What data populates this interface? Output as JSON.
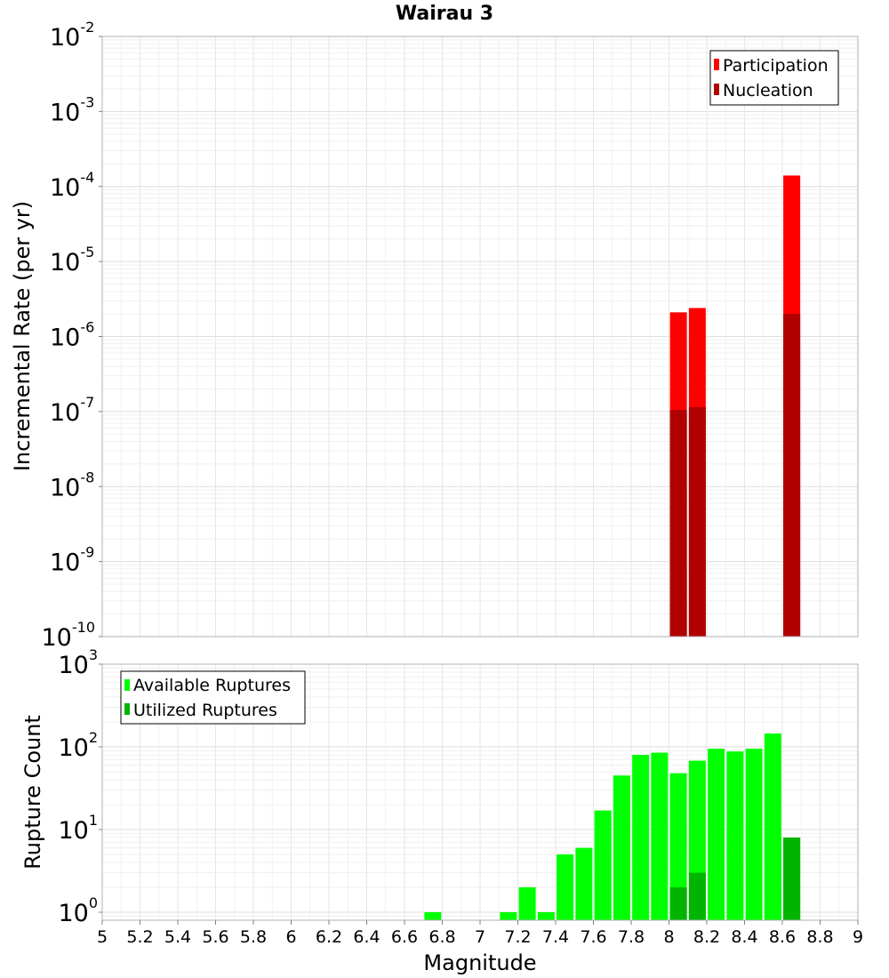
{
  "chart_data": [
    {
      "type": "bar",
      "title": "Wairau 3",
      "xlabel": "",
      "ylabel": "Incremental Rate (per yr)",
      "yscale": "log",
      "ylim": [
        1e-10,
        0.01
      ],
      "xlim": [
        5,
        9
      ],
      "y_tick_labels": [
        {
          "base": "10",
          "exp": "-10",
          "value": 1e-10
        },
        {
          "base": "10",
          "exp": "-9",
          "value": 1e-09
        },
        {
          "base": "10",
          "exp": "-8",
          "value": 1e-08
        },
        {
          "base": "10",
          "exp": "-7",
          "value": 1e-07
        },
        {
          "base": "10",
          "exp": "-6",
          "value": 1e-06
        },
        {
          "base": "10",
          "exp": "-5",
          "value": 1e-05
        },
        {
          "base": "10",
          "exp": "-4",
          "value": 0.0001
        },
        {
          "base": "10",
          "exp": "-3",
          "value": 0.001
        },
        {
          "base": "10",
          "exp": "-2",
          "value": 0.01
        }
      ],
      "legend_position": "top-right",
      "grid": true,
      "series": [
        {
          "name": "Participation",
          "color": "#ff0000",
          "x": [
            8.05,
            8.15,
            8.65
          ],
          "values": [
            2.1e-06,
            2.4e-06,
            0.00014
          ]
        },
        {
          "name": "Nucleation",
          "color": "#b00000",
          "x": [
            8.05,
            8.15,
            8.65
          ],
          "values": [
            1.05e-07,
            1.15e-07,
            2e-06
          ]
        }
      ]
    },
    {
      "type": "bar",
      "title": "",
      "xlabel": "Magnitude",
      "ylabel": "Rupture Count",
      "yscale": "log",
      "ylim": [
        0.8,
        1000
      ],
      "xlim": [
        5,
        9
      ],
      "y_tick_labels": [
        {
          "base": "10",
          "exp": "0",
          "value": 1
        },
        {
          "base": "10",
          "exp": "1",
          "value": 10
        },
        {
          "base": "10",
          "exp": "2",
          "value": 100
        },
        {
          "base": "10",
          "exp": "3",
          "value": 1000
        }
      ],
      "x_tick_labels": [
        "5",
        "5.2",
        "5.4",
        "5.6",
        "5.8",
        "6",
        "6.2",
        "6.4",
        "6.6",
        "6.8",
        "7",
        "7.2",
        "7.4",
        "7.6",
        "7.8",
        "8",
        "8.2",
        "8.4",
        "8.6",
        "8.8",
        "9"
      ],
      "legend_position": "top-left",
      "grid": true,
      "series": [
        {
          "name": "Available Ruptures",
          "color": "#00ff00",
          "x": [
            6.75,
            7.15,
            7.25,
            7.35,
            7.45,
            7.55,
            7.65,
            7.75,
            7.85,
            7.95,
            8.05,
            8.15,
            8.25,
            8.35,
            8.45,
            8.55,
            8.65
          ],
          "values": [
            1,
            1,
            2,
            1,
            5,
            6,
            17,
            45,
            80,
            85,
            48,
            68,
            95,
            88,
            95,
            145,
            8
          ]
        },
        {
          "name": "Utilized Ruptures",
          "color": "#00b400",
          "x": [
            8.05,
            8.15,
            8.65
          ],
          "values": [
            2,
            3,
            8
          ]
        }
      ]
    }
  ]
}
